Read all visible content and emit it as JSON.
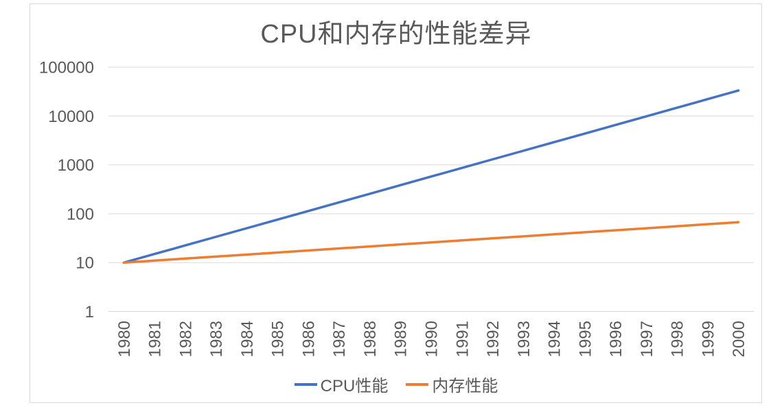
{
  "chart_data": {
    "type": "line",
    "title": "CPU和内存的性能差异",
    "xlabel": "",
    "ylabel": "",
    "y_scale": "log",
    "ylim": [
      1,
      100000
    ],
    "y_ticks": [
      1,
      10,
      100,
      1000,
      10000,
      100000
    ],
    "grid": "horizontal",
    "legend_position": "bottom",
    "categories": [
      "1980",
      "1981",
      "1982",
      "1983",
      "1984",
      "1985",
      "1986",
      "1987",
      "1988",
      "1989",
      "1990",
      "1991",
      "1992",
      "1993",
      "1994",
      "1995",
      "1996",
      "1997",
      "1998",
      "1999",
      "2000"
    ],
    "series": [
      {
        "name": "CPU性能",
        "color": "#4472C4",
        "growth_rate_per_year": "50%",
        "values": [
          10,
          15,
          22.5,
          33.8,
          50.6,
          75.9,
          113.9,
          170.9,
          256.3,
          384.4,
          576.7,
          865,
          1297.5,
          1946.2,
          2919.3,
          4378.9,
          6568.4,
          9852.6,
          14778.9,
          22168.4,
          33252.6
        ]
      },
      {
        "name": "内存性能",
        "color": "#ED7D31",
        "growth_rate_per_year": "10%",
        "values": [
          10,
          11,
          12.1,
          13.3,
          14.6,
          16.1,
          17.7,
          19.5,
          21.4,
          23.6,
          25.9,
          28.5,
          31.4,
          34.5,
          38,
          41.8,
          45.9,
          50.5,
          55.6,
          61.2,
          67.3
        ]
      }
    ],
    "colors": {
      "text": "#595959",
      "grid": "#D9D9D9",
      "frame": "#D9D9D9",
      "background": "#FFFFFF"
    }
  }
}
